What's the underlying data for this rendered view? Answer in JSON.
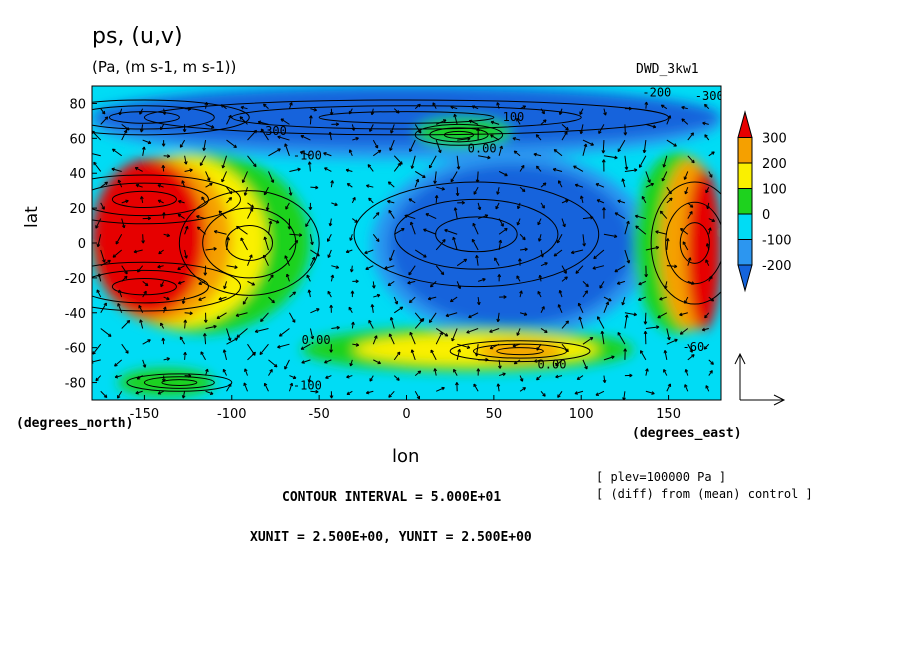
{
  "header": {
    "title": "ps, (u,v)",
    "units": "(Pa, (m s-1, m s-1))",
    "run": "DWD_3kw1"
  },
  "axes": {
    "ylabel": "lat",
    "xlabel": "lon",
    "y_units": "(degrees_north)",
    "x_units": "(degrees_east)"
  },
  "footer": {
    "contour_interval": "CONTOUR INTERVAL = 5.000E+01",
    "xy_unit": "XUNIT = 2.500E+00, YUNIT = 2.500E+00",
    "plev": "[ plev=100000 Pa ]",
    "diff": "[ (diff) from (mean) control ]"
  },
  "colors": {
    "band_le_-200": "#1464dc",
    "band_-200_-100": "#2c96f0",
    "band_-100_0": "#00dcf5",
    "band_0_100": "#1ed21e",
    "band_100_200": "#faf000",
    "band_200_300": "#f5a000",
    "band_ge_300": "#e60000"
  },
  "chart_data": {
    "type": "heatmap",
    "field": "ps",
    "vector_field": "(u,v)",
    "x_ticks": [
      -150,
      -100,
      -50,
      0,
      50,
      100,
      150
    ],
    "y_ticks": [
      -80,
      -60,
      -40,
      -20,
      0,
      20,
      40,
      60,
      80
    ],
    "xlim": [
      -180,
      180
    ],
    "ylim": [
      -90,
      90
    ],
    "colorbar_levels": [
      300,
      200,
      100,
      0,
      -100,
      -200
    ],
    "contour_interval": 50,
    "contour_labels": [
      {
        "lon": -85,
        "lat": 62,
        "text": "-300"
      },
      {
        "lon": -65,
        "lat": 48,
        "text": "-100"
      },
      {
        "lon": 55,
        "lat": 70,
        "text": "100"
      },
      {
        "lon": 35,
        "lat": 52,
        "text": "0.00"
      },
      {
        "lon": -60,
        "lat": -58,
        "text": "0.00"
      },
      {
        "lon": 75,
        "lat": -72,
        "text": "0.00"
      },
      {
        "lon": -65,
        "lat": -84,
        "text": "-100"
      },
      {
        "lon": 135,
        "lat": 84,
        "text": "-200"
      },
      {
        "lon": 165,
        "lat": 82,
        "text": "-300"
      },
      {
        "lon": 158,
        "lat": -62,
        "text": "-60"
      }
    ],
    "anomaly_regions": [
      {
        "label": "ge_300",
        "lon": [
          -180,
          -115
        ],
        "lat": [
          -42,
          48
        ]
      },
      {
        "label": "ge_300",
        "lon": [
          160,
          180
        ],
        "lat": [
          -50,
          42
        ]
      },
      {
        "label": "le_-200",
        "lon": [
          -10,
          130
        ],
        "lat": [
          -48,
          45
        ]
      },
      {
        "label": "le_-200",
        "lon": [
          -180,
          180
        ],
        "lat": [
          55,
          90
        ]
      },
      {
        "label": "100_200",
        "lon": [
          -30,
          110
        ],
        "lat": [
          -70,
          -52
        ]
      },
      {
        "label": "200_300",
        "lon": [
          40,
          90
        ],
        "lat": [
          -68,
          -56
        ]
      },
      {
        "label": "0_100",
        "lon": [
          5,
          60
        ],
        "lat": [
          55,
          72
        ]
      },
      {
        "label": "0_100",
        "lon": [
          -165,
          -110
        ],
        "lat": [
          -88,
          -72
        ]
      }
    ]
  }
}
